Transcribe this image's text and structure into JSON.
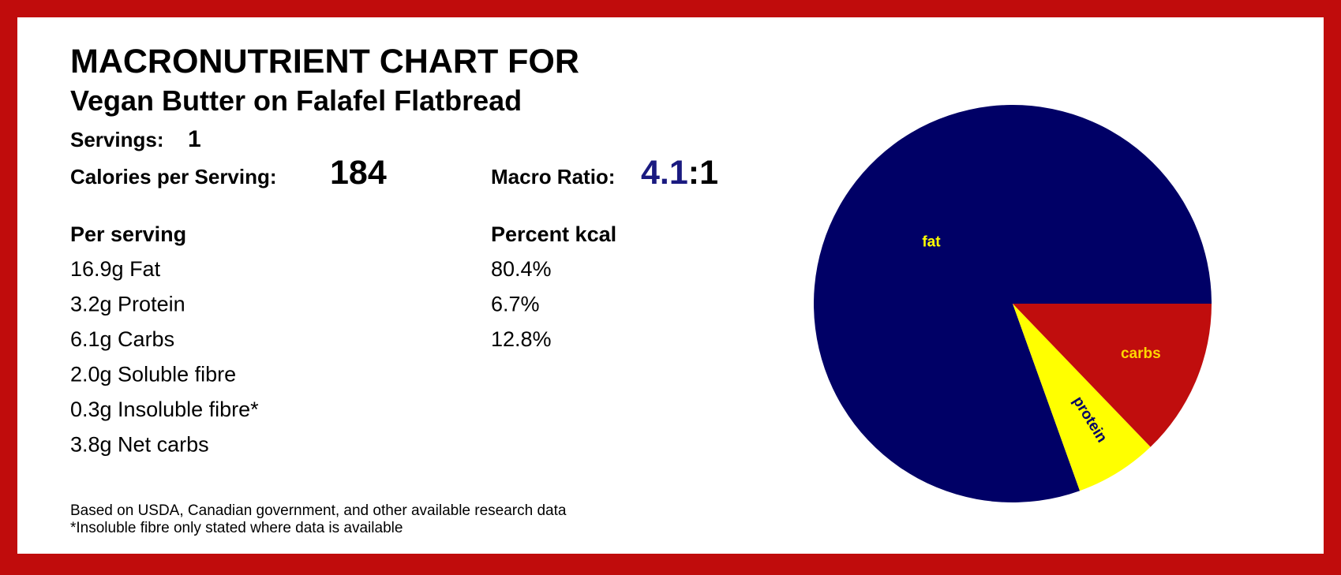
{
  "header": {
    "title": "MACRONUTRIENT CHART FOR",
    "subtitle": "Vegan Butter on Falafel Flatbread"
  },
  "servings": {
    "label": "Servings:",
    "value": 1
  },
  "calories": {
    "label": "Calories per Serving:",
    "value": 184
  },
  "macro_ratio": {
    "label": "Macro Ratio:",
    "value": 4.1,
    "rest": ":1"
  },
  "columns": [
    "Per serving",
    "Percent kcal"
  ],
  "nutrients": [
    "16.9g Fat",
    "3.2g Protein",
    "6.1g Carbs",
    "2.0g Soluble fibre",
    "0.3g Insoluble fibre*",
    "3.8g Net carbs"
  ],
  "footnotes": [
    "Based on USDA, Canadian government, and other available research data",
    "*Insoluble fibre only stated where data is available"
  ],
  "chart_data": {
    "type": "pie",
    "categories": [
      "fat",
      "protein",
      "carbs"
    ],
    "values": [
      80.4,
      6.7,
      12.8
    ],
    "value_labels": [
      "80.4%",
      "6.7%",
      "12.8%"
    ],
    "colors": [
      "#000066",
      "#ffff00",
      "#c00d0d"
    ],
    "label_colors": [
      "#ffff00",
      "#000066",
      "#ffd700"
    ]
  }
}
